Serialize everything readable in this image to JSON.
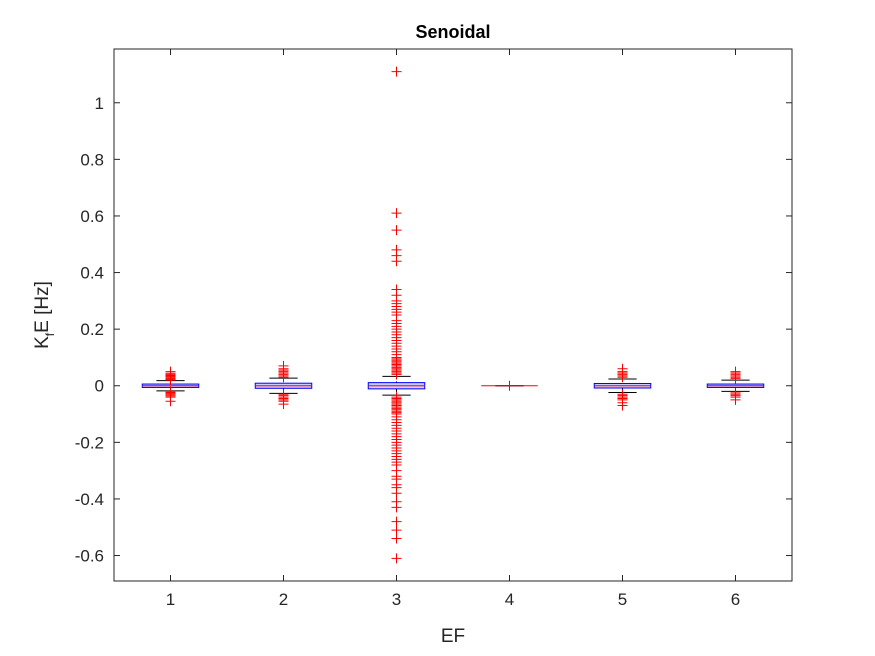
{
  "chart_data": {
    "type": "boxplot",
    "title": "Senoidal",
    "xlabel": "EF",
    "ylabel": {
      "main": "K",
      "subscript": "f",
      "rest": "E [Hz]"
    },
    "categories": [
      "1",
      "2",
      "3",
      "4",
      "5",
      "6"
    ],
    "ylim": [
      -0.69,
      1.19
    ],
    "yticks": [
      -0.6,
      -0.4,
      -0.2,
      0,
      0.2,
      0.4,
      0.6,
      0.8,
      1
    ],
    "ytick_labels": [
      "-0.6",
      "-0.4",
      "-0.2",
      "0",
      "0.2",
      "0.4",
      "0.6",
      "0.8",
      "1"
    ],
    "grid": false,
    "colors": {
      "box_edge": "#0000ff",
      "box_fill": "#ccccff",
      "median": "#ff0000",
      "whisker": "#000000",
      "outlier": "#ff0000",
      "axis": "#262626"
    },
    "boxes": [
      {
        "category": "1",
        "q1": -0.006,
        "median": 0.0,
        "q3": 0.006,
        "whisker_low": -0.018,
        "whisker_high": 0.018,
        "outliers": [
          0.02,
          0.023,
          0.026,
          0.03,
          0.033,
          0.036,
          0.04,
          0.044,
          0.05,
          -0.02,
          -0.024,
          -0.028,
          -0.032,
          -0.036,
          -0.04,
          -0.055
        ]
      },
      {
        "category": "2",
        "q1": -0.009,
        "median": 0.0,
        "q3": 0.009,
        "whisker_low": -0.027,
        "whisker_high": 0.027,
        "outliers": [
          0.03,
          0.035,
          0.04,
          0.045,
          0.05,
          0.055,
          0.06,
          0.07,
          -0.03,
          -0.035,
          -0.04,
          -0.045,
          -0.05,
          -0.055,
          -0.065
        ]
      },
      {
        "category": "3",
        "q1": -0.011,
        "median": 0.0,
        "q3": 0.011,
        "whisker_low": -0.033,
        "whisker_high": 0.033,
        "outliers": [
          1.11,
          0.61,
          0.55,
          0.48,
          0.46,
          0.44,
          0.34,
          0.32,
          0.3,
          0.29,
          0.28,
          0.27,
          0.26,
          0.25,
          0.23,
          0.22,
          0.21,
          0.2,
          0.19,
          0.18,
          0.17,
          0.16,
          0.15,
          0.14,
          0.13,
          0.12,
          0.11,
          0.1,
          0.095,
          0.09,
          0.085,
          0.08,
          0.075,
          0.07,
          0.065,
          0.06,
          0.055,
          0.05,
          0.045,
          0.04,
          -0.04,
          -0.045,
          -0.05,
          -0.055,
          -0.06,
          -0.065,
          -0.07,
          -0.075,
          -0.08,
          -0.085,
          -0.09,
          -0.095,
          -0.1,
          -0.11,
          -0.12,
          -0.13,
          -0.14,
          -0.15,
          -0.16,
          -0.17,
          -0.18,
          -0.19,
          -0.2,
          -0.21,
          -0.22,
          -0.23,
          -0.24,
          -0.25,
          -0.26,
          -0.27,
          -0.28,
          -0.3,
          -0.32,
          -0.33,
          -0.35,
          -0.36,
          -0.38,
          -0.41,
          -0.43,
          -0.48,
          -0.51,
          -0.54,
          -0.61
        ]
      },
      {
        "category": "4",
        "q1": 0.0,
        "median": 0.0,
        "q3": 0.0,
        "whisker_low": 0.0,
        "whisker_high": 0.0,
        "outliers": []
      },
      {
        "category": "5",
        "q1": -0.008,
        "median": 0.0,
        "q3": 0.008,
        "whisker_low": -0.024,
        "whisker_high": 0.024,
        "outliers": [
          0.03,
          0.035,
          0.04,
          0.045,
          0.05,
          0.06,
          -0.03,
          -0.035,
          -0.04,
          -0.045,
          -0.05,
          -0.06,
          -0.07
        ]
      },
      {
        "category": "6",
        "q1": -0.006,
        "median": 0.0,
        "q3": 0.006,
        "whisker_low": -0.02,
        "whisker_high": 0.02,
        "outliers": [
          0.025,
          0.03,
          0.035,
          0.04,
          0.045,
          0.05,
          -0.025,
          -0.03,
          -0.035,
          -0.04,
          -0.05
        ]
      }
    ]
  }
}
